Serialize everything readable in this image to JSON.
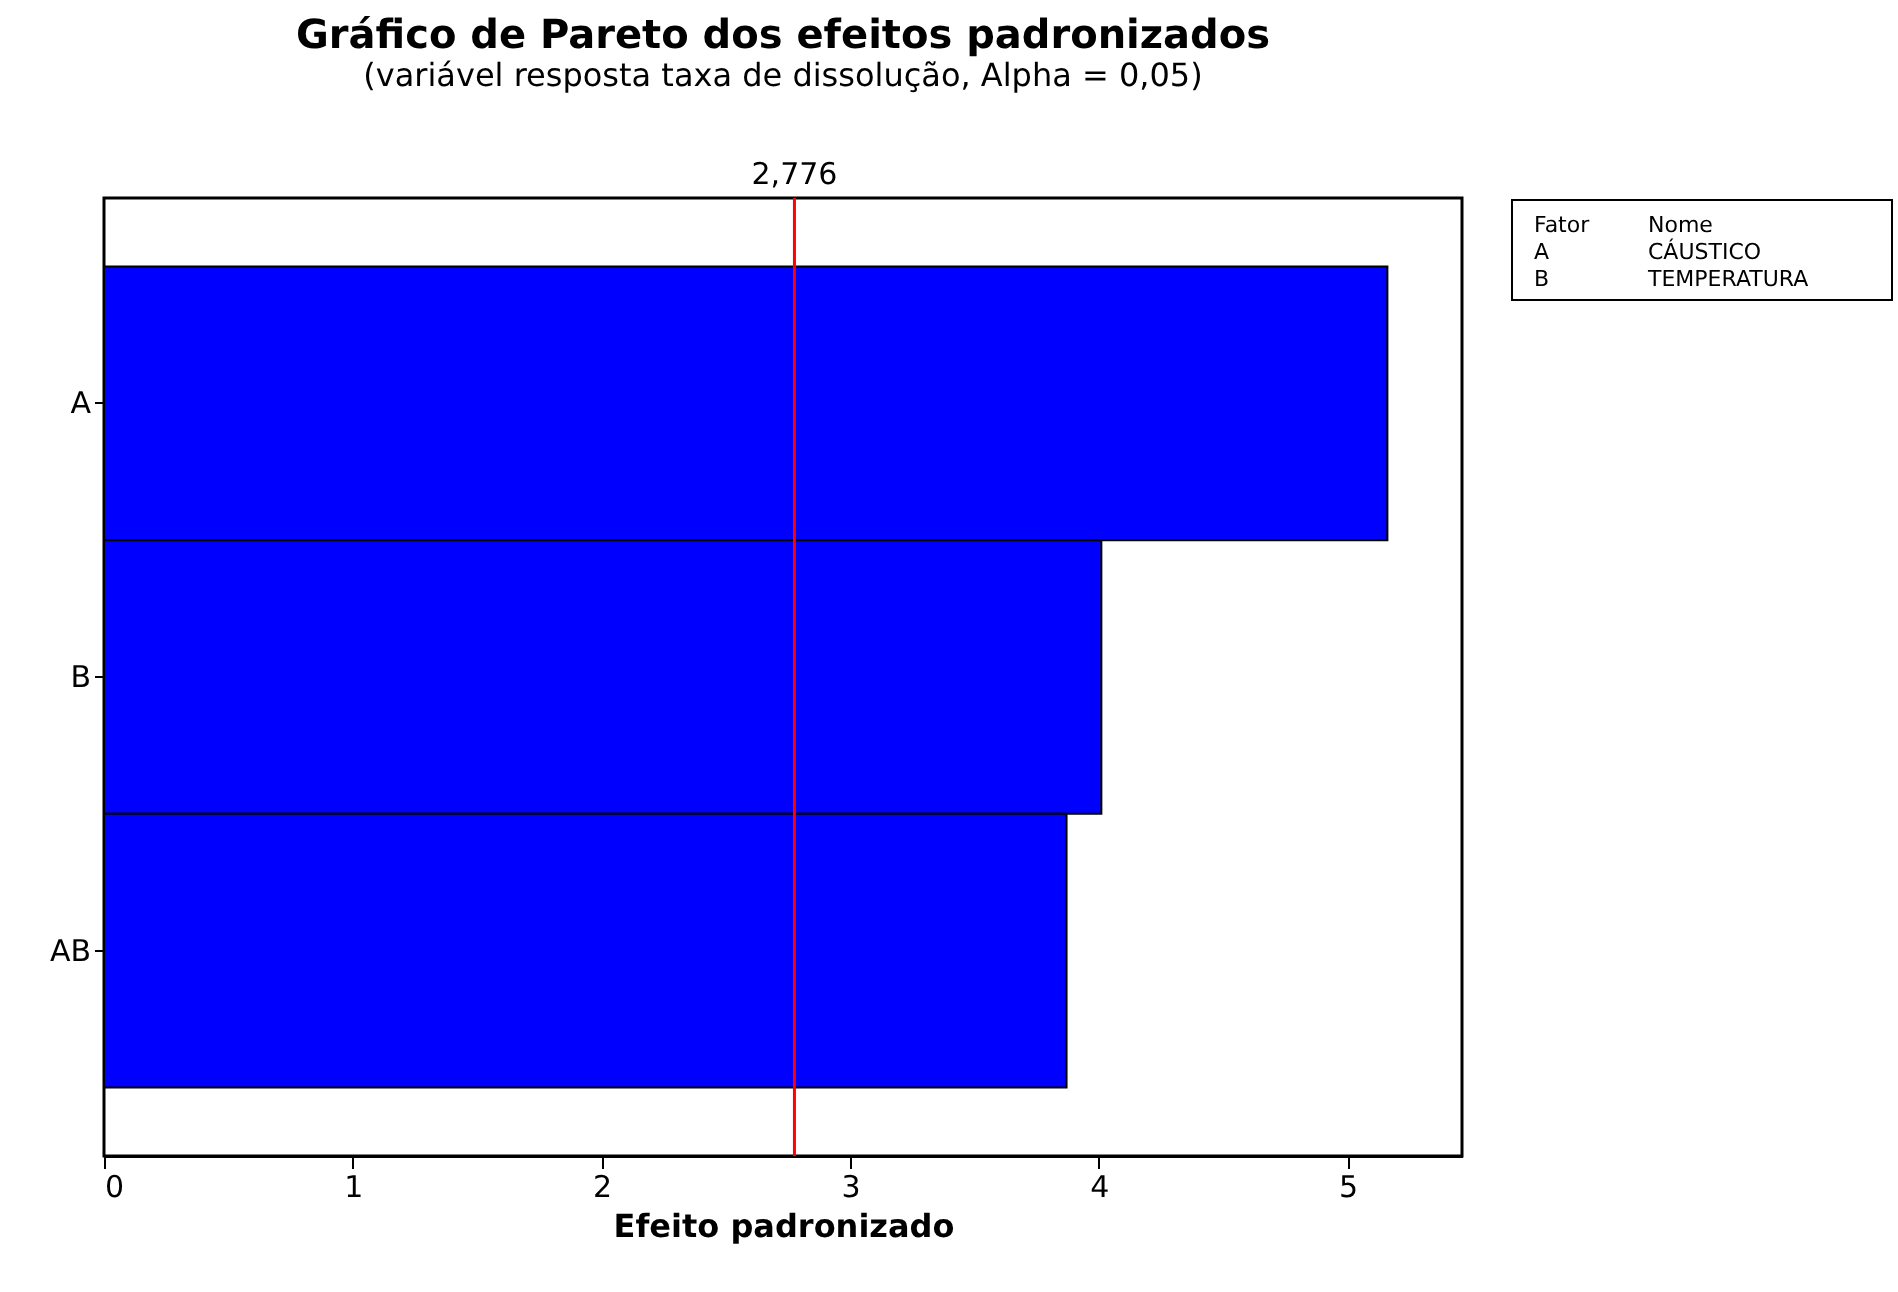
{
  "chart_data": {
    "type": "bar",
    "orientation": "horizontal",
    "title": "Gráfico de Pareto dos efeitos padronizados",
    "subtitle": "(variável resposta taxa de dissolução, Alpha = 0,05)",
    "xlabel": "Efeito padronizado",
    "categories": [
      "A",
      "B",
      "AB"
    ],
    "values": [
      5.16,
      4.01,
      3.87
    ],
    "color": "#0000ff",
    "xlim": [
      0,
      5.46
    ],
    "xticks": [
      0,
      1,
      2,
      3,
      4,
      5
    ],
    "grid": false,
    "ref_lines": [
      {
        "axis": "x",
        "value": 2.776,
        "label": "2,776",
        "color": "#ff0000"
      }
    ],
    "annotations": [
      "Fator Nome",
      "A CÁUSTICO",
      "B TEMPERATURA"
    ]
  }
}
